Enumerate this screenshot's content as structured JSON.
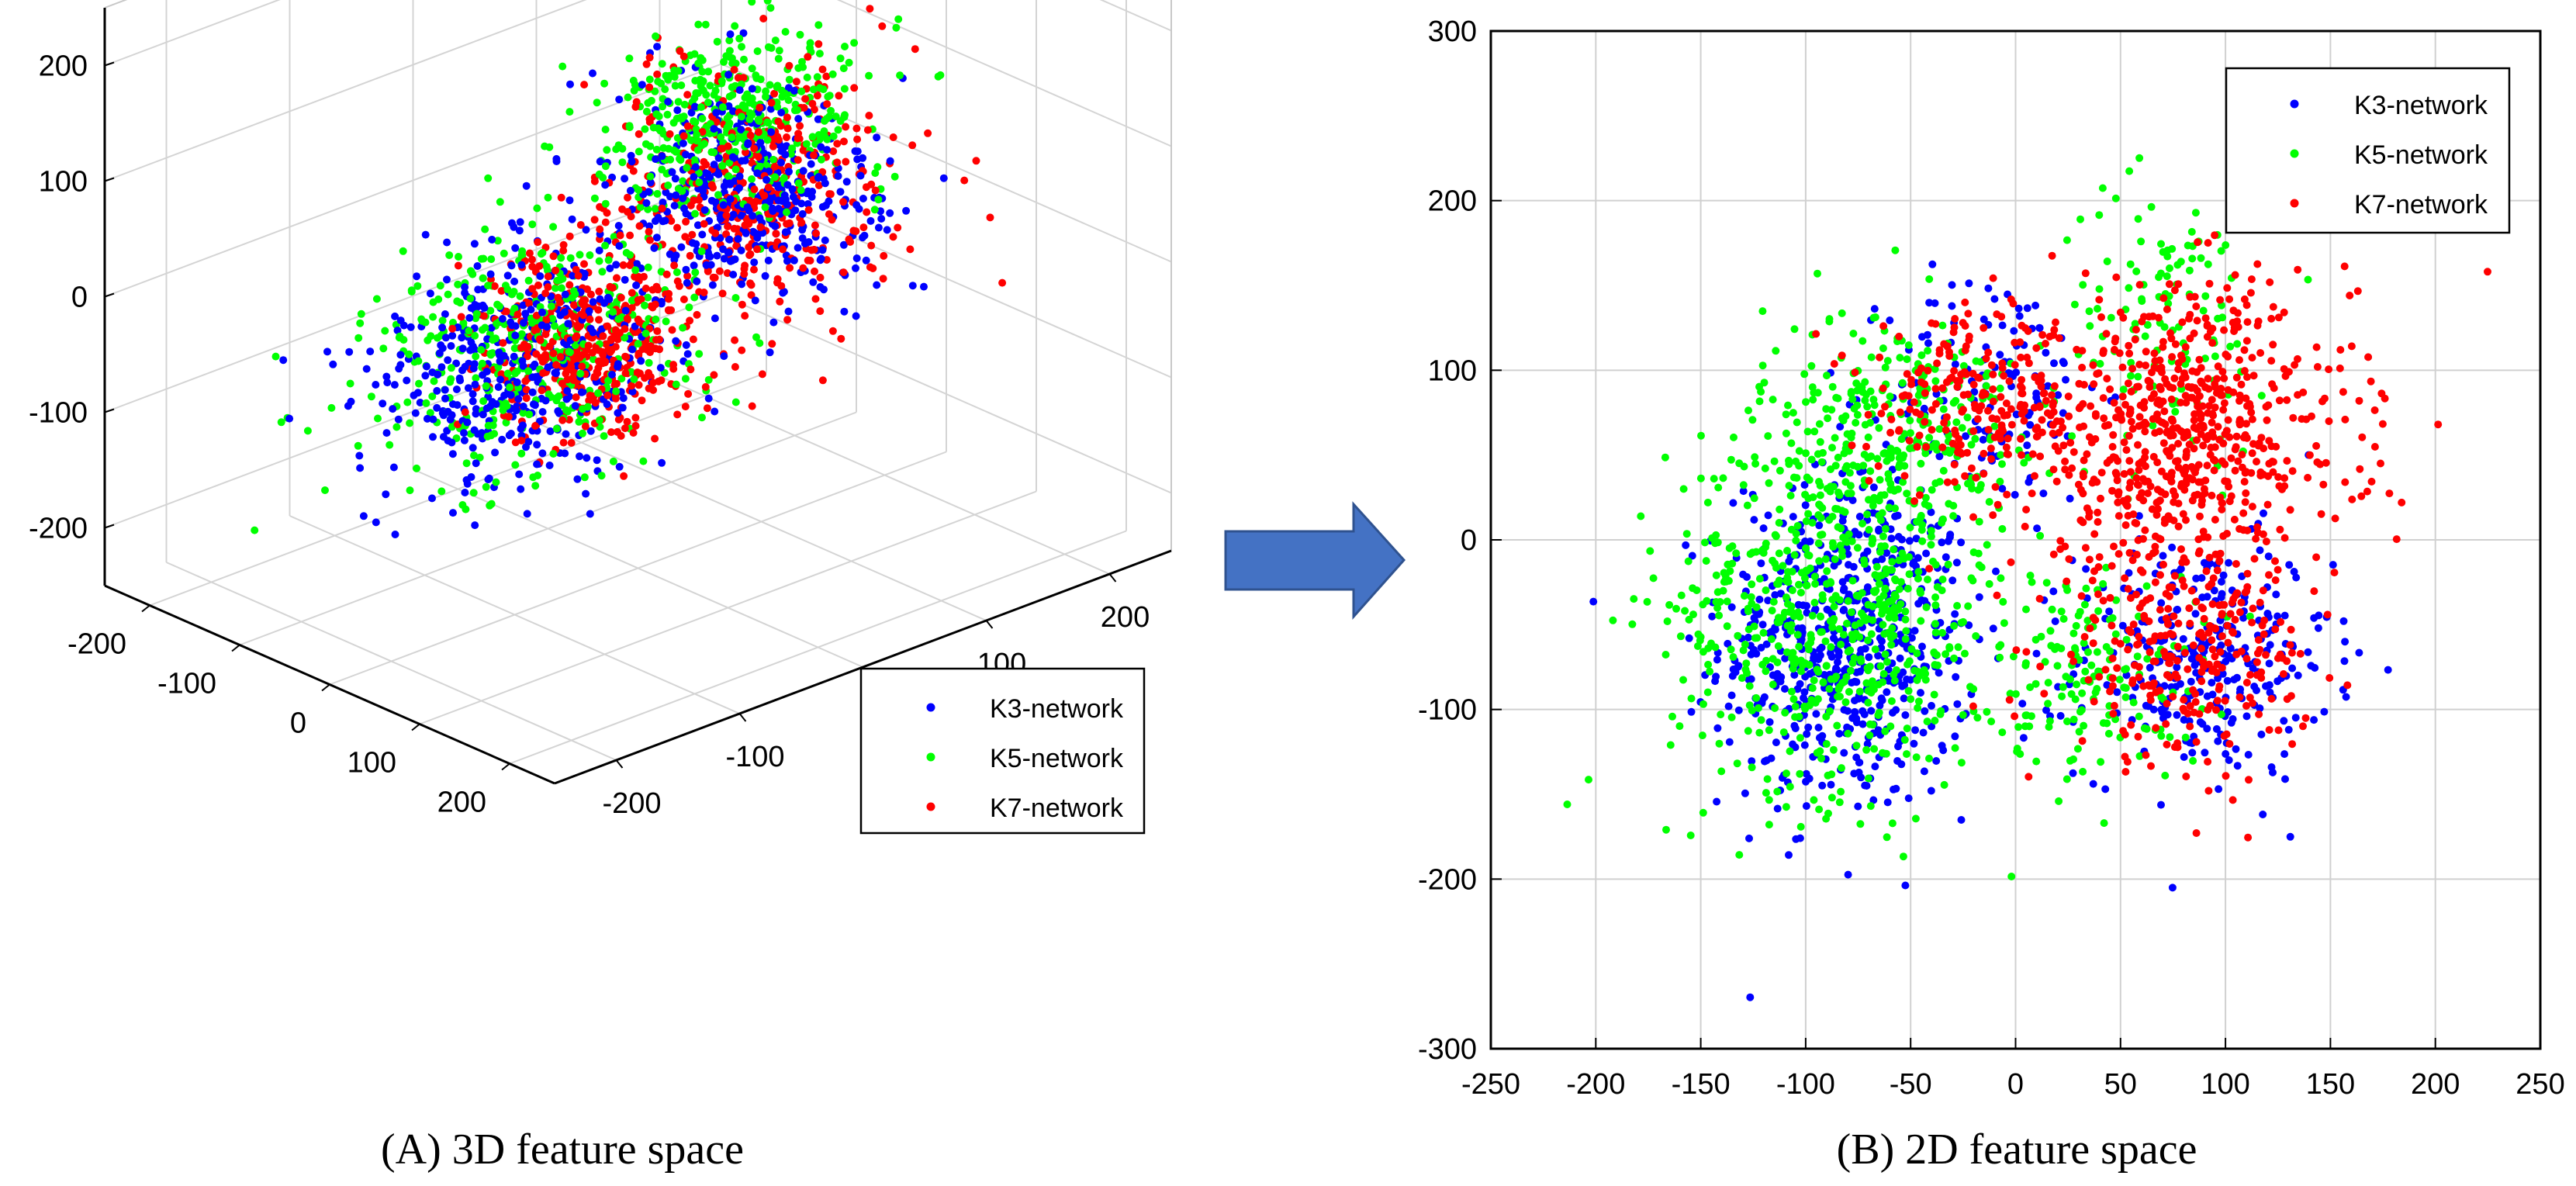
{
  "colors": {
    "k3": "#0000ff",
    "k5": "#00ff00",
    "k7": "#ff0000",
    "arrow": "#4472c4",
    "arrow_edge": "#2f528f"
  },
  "arrow": {
    "icon": "right-arrow-icon"
  },
  "chart_data": [
    {
      "type": "scatter3d",
      "caption": "(A)  3D feature space",
      "axes": {
        "x": {
          "range": [
            -250,
            250
          ],
          "ticks": [
            -200,
            -100,
            0,
            100,
            200
          ]
        },
        "y": {
          "range": [
            -250,
            250
          ],
          "ticks": [
            -200,
            -100,
            0,
            100,
            200
          ]
        },
        "z": {
          "range": [
            -250,
            250
          ],
          "ticks": [
            -200,
            -100,
            0,
            100,
            200
          ]
        }
      },
      "grid": true,
      "legend": {
        "position": "bottom-right",
        "entries": [
          "K3-network",
          "K5-network",
          "K7-network"
        ]
      },
      "series": [
        {
          "name": "K3-network",
          "color_key": "k3",
          "points_per_cluster": 420,
          "clusters": [
            {
              "center": [
                -40,
                -70,
                -60
              ],
              "spread": [
                45,
                55,
                45
              ]
            },
            {
              "center": [
                40,
                60,
                60
              ],
              "spread": [
                55,
                40,
                40
              ]
            }
          ]
        },
        {
          "name": "K5-network",
          "color_key": "k5",
          "points_per_cluster": 420,
          "clusters": [
            {
              "center": [
                -70,
                -40,
                -70
              ],
              "spread": [
                50,
                55,
                40
              ]
            },
            {
              "center": [
                -10,
                80,
                100
              ],
              "spread": [
                45,
                45,
                35
              ]
            }
          ]
        },
        {
          "name": "K7-network",
          "color_key": "k7",
          "points_per_cluster": 420,
          "clusters": [
            {
              "center": [
                60,
                50,
                80
              ],
              "spread": [
                50,
                45,
                45
              ]
            },
            {
              "center": [
                30,
                -60,
                -20
              ],
              "spread": [
                40,
                35,
                35
              ]
            }
          ]
        }
      ]
    },
    {
      "type": "scatter",
      "caption": "(B)  2D feature space",
      "xlim": [
        -250,
        250
      ],
      "ylim": [
        -300,
        300
      ],
      "xticks": [
        -250,
        -200,
        -150,
        -100,
        -50,
        0,
        50,
        100,
        150,
        200,
        250
      ],
      "yticks": [
        -300,
        -200,
        -100,
        0,
        100,
        200,
        300
      ],
      "grid": true,
      "legend": {
        "position": "top-right",
        "entries": [
          "K3-network",
          "K5-network",
          "K7-network"
        ]
      },
      "series": [
        {
          "name": "K3-network",
          "color_key": "k3",
          "clusters": [
            {
              "center": [
                -80,
                -60
              ],
              "spread": [
                30,
                50
              ],
              "n": 600
            },
            {
              "center": [
                90,
                -70
              ],
              "spread": [
                30,
                35
              ],
              "n": 300
            },
            {
              "center": [
                -10,
                90
              ],
              "spread": [
                25,
                35
              ],
              "n": 120
            }
          ]
        },
        {
          "name": "K5-network",
          "color_key": "k5",
          "clusters": [
            {
              "center": [
                -85,
                -40
              ],
              "spread": [
                40,
                55
              ],
              "n": 650
            },
            {
              "center": [
                -60,
                70
              ],
              "spread": [
                30,
                35
              ],
              "n": 250
            },
            {
              "center": [
                40,
                -80
              ],
              "spread": [
                25,
                30
              ],
              "n": 150
            },
            {
              "center": [
                70,
                130
              ],
              "spread": [
                25,
                40
              ],
              "n": 120
            }
          ]
        },
        {
          "name": "K7-network",
          "color_key": "k7",
          "clusters": [
            {
              "center": [
                80,
                60
              ],
              "spread": [
                40,
                45
              ],
              "n": 700
            },
            {
              "center": [
                -20,
                80
              ],
              "spread": [
                25,
                25
              ],
              "n": 200
            },
            {
              "center": [
                80,
                -70
              ],
              "spread": [
                30,
                30
              ],
              "n": 250
            }
          ]
        }
      ]
    }
  ]
}
